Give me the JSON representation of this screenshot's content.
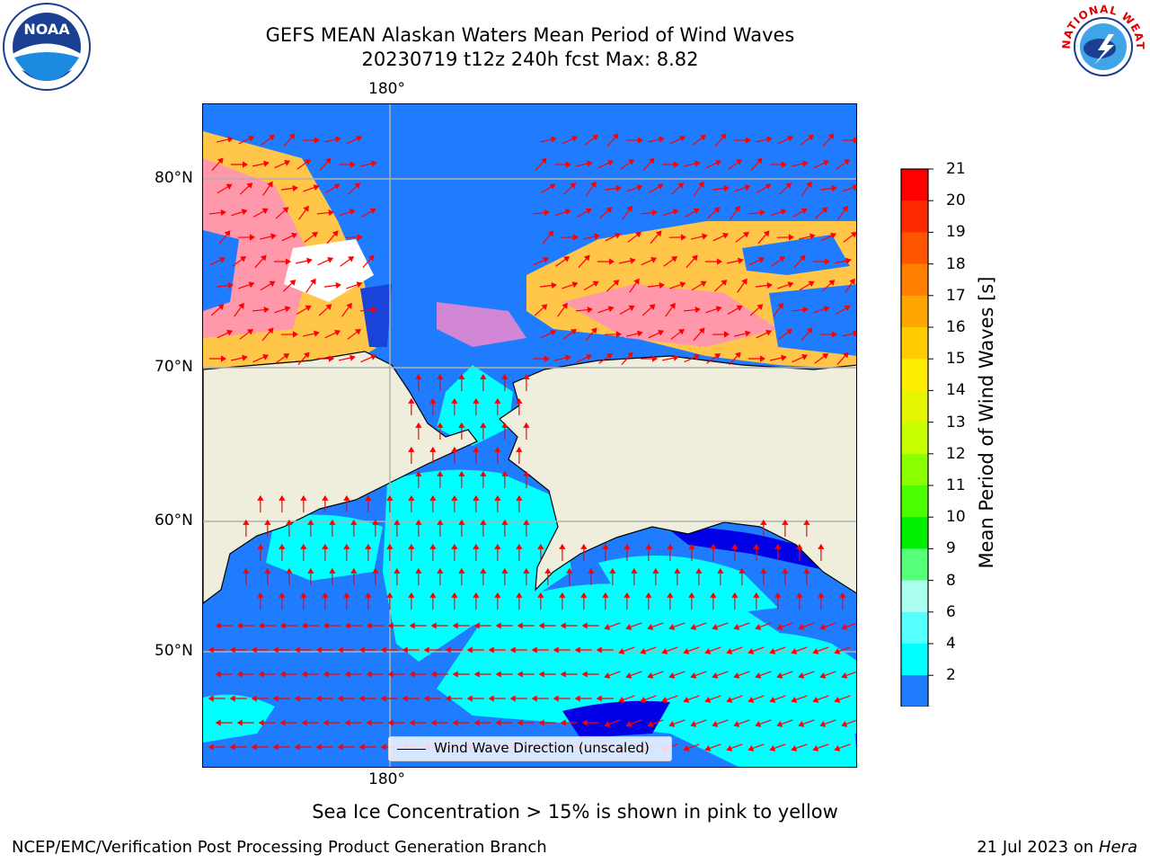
{
  "header": {
    "title_line1": "GEFS MEAN Alaskan Waters Mean Period of Wind Waves",
    "title_line2": "20230719 t12z 240h fcst   Max: 8.82"
  },
  "logos": {
    "noaa": {
      "text": "NOAA"
    },
    "nws": {
      "text": "NATIONAL WEATHER SERVICE"
    }
  },
  "map": {
    "lon_label_top": "180°",
    "lon_label_bottom": "180°",
    "lat_labels": [
      "80°N",
      "70°N",
      "60°N",
      "50°N"
    ],
    "legend_label": "Wind Wave Direction (unscaled)",
    "colors": {
      "ocean": "#1f7cff",
      "land": "#efeedd",
      "ice": "#ffc64a",
      "arrow": "#ff0000",
      "grid": "#b0b0b0"
    }
  },
  "colorbar": {
    "label": "Mean Period of Wind Waves [s]",
    "ticks": [
      "21",
      "20",
      "19",
      "18",
      "17",
      "16",
      "15",
      "14",
      "13",
      "12",
      "11",
      "10",
      "9",
      "8",
      "6",
      "4",
      "2"
    ],
    "colors": [
      "#ff0000",
      "#ff2a00",
      "#ff5500",
      "#ff7f00",
      "#ffa500",
      "#ffcc00",
      "#ffee00",
      "#e6f500",
      "#c8ff00",
      "#8aff00",
      "#4cff00",
      "#00ee00",
      "#55ff77",
      "#aaffee",
      "#55ffff",
      "#00ffff",
      "#1f7cff"
    ],
    "under_color": "#0000ff"
  },
  "footer": {
    "note": "Sea Ice Concentration > 15% is shown in pink to yellow",
    "left": "NCEP/EMC/Verification Post Processing Product Generation Branch",
    "right_date": "21 Jul 2023 on ",
    "right_host": "Hera"
  }
}
